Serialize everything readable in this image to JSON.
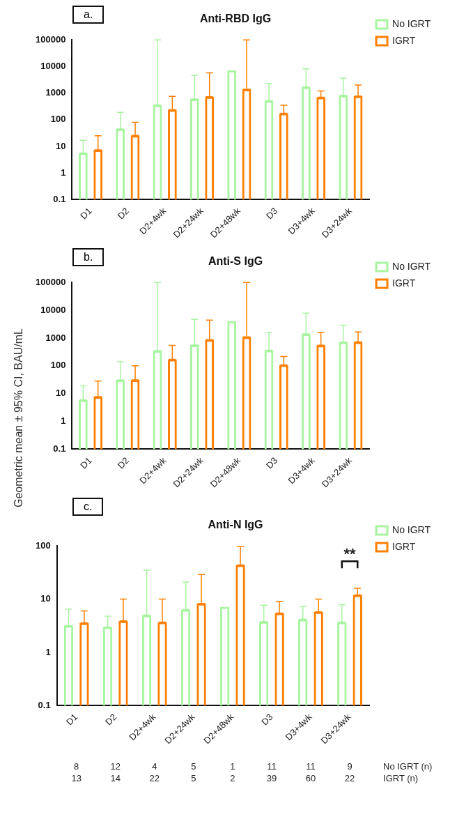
{
  "chart_data": [
    {
      "type": "bar",
      "title": "Anti-RBD IgG",
      "categories": [
        "D1",
        "D2",
        "D2+4wk",
        "D2+24wk",
        "D2+48wk",
        "D3",
        "D3+4wk",
        "D3+24wk"
      ],
      "log": true,
      "ylim": [
        0.1,
        100000
      ],
      "yticks": [
        0.1,
        1,
        10,
        100,
        1000,
        10000,
        100000
      ],
      "legend": "top right",
      "annotations": [
        "a."
      ],
      "series": [
        {
          "name": "No IGRT",
          "color": "#a8f5a0",
          "values": [
            5.6,
            45,
            360,
            600,
            7200,
            520,
            1700,
            830
          ],
          "errors": [
            [
              5.6,
              17
            ],
            [
              45,
              190
            ],
            [
              360,
              100000
            ],
            [
              600,
              4700
            ],
            null,
            [
              520,
              2300
            ],
            [
              1700,
              8200
            ],
            [
              830,
              3700
            ]
          ]
        },
        {
          "name": "IGRT",
          "color": "#ff8000",
          "values": [
            7.4,
            26,
            240,
            730,
            1400,
            175,
            700,
            780
          ],
          "errors": [
            [
              7.4,
              25
            ],
            [
              26,
              80
            ],
            [
              240,
              760
            ],
            [
              730,
              5800
            ],
            [
              1400,
              100000
            ],
            [
              175,
              350
            ],
            [
              700,
              1200
            ],
            [
              780,
              2000
            ]
          ]
        }
      ]
    },
    {
      "type": "bar",
      "title": "Anti-S IgG",
      "ylabel": "Geometric mean ± 95% CI, BAU/mL",
      "categories": [
        "D1",
        "D2",
        "D2+4wk",
        "D2+24wk",
        "D2+48wk",
        "D3",
        "D3+4wk",
        "D3+24wk"
      ],
      "log": true,
      "ylim": [
        0.1,
        100000
      ],
      "yticks": [
        0.1,
        1,
        10,
        100,
        1000,
        10000,
        100000
      ],
      "legend": "top right",
      "annotations": [
        "b."
      ],
      "series": [
        {
          "name": "No IGRT",
          "color": "#a8f5a0",
          "values": [
            6,
            31,
            350,
            560,
            4100,
            360,
            1400,
            710
          ],
          "errors": [
            [
              6,
              19
            ],
            [
              31,
              140
            ],
            [
              350,
              100000
            ],
            [
              560,
              4700
            ],
            null,
            [
              360,
              1600
            ],
            [
              1400,
              7800
            ],
            [
              710,
              2900
            ]
          ]
        },
        {
          "name": "IGRT",
          "color": "#ff8000",
          "values": [
            7.8,
            31,
            170,
            870,
            1100,
            107,
            550,
            730
          ],
          "errors": [
            [
              7.8,
              28
            ],
            [
              31,
              100
            ],
            [
              170,
              540
            ],
            [
              870,
              4400
            ],
            [
              1100,
              100000
            ],
            [
              107,
              215
            ],
            [
              550,
              1550
            ],
            [
              730,
              1650
            ]
          ]
        }
      ]
    },
    {
      "type": "bar",
      "title": "Anti-N IgG",
      "categories": [
        "D1",
        "D2",
        "D2+4wk",
        "D2+24wk",
        "D2+48wk",
        "D3",
        "D3+4wk",
        "D3+24wk"
      ],
      "log": true,
      "ylim": [
        0.1,
        100
      ],
      "yticks": [
        0.1,
        1,
        10,
        100
      ],
      "legend": "top right",
      "annotations": [
        "c.",
        "**",
        "8",
        "12",
        "4",
        "5",
        "1",
        "11",
        "11",
        "9",
        "No IGRT (n)",
        "13",
        "14",
        "22",
        "5",
        "2",
        "39",
        "60",
        "22",
        "IGRT (n)"
      ],
      "series": [
        {
          "name": "No IGRT",
          "color": "#a8f5a0",
          "values": [
            3.2,
            3.0,
            5.0,
            6.4,
            7.2,
            3.8,
            4.2,
            3.7
          ],
          "errors": [
            [
              3.2,
              6.5
            ],
            [
              3.0,
              4.8
            ],
            [
              5.0,
              35
            ],
            [
              6.4,
              21
            ],
            null,
            [
              3.8,
              7.7
            ],
            [
              4.2,
              7.3
            ],
            [
              3.7,
              7.9
            ]
          ]
        },
        {
          "name": "IGRT",
          "color": "#ff8000",
          "values": [
            3.6,
            3.9,
            3.7,
            8.3,
            44,
            5.5,
            5.8,
            12
          ],
          "errors": [
            [
              3.6,
              6
            ],
            [
              3.9,
              10
            ],
            [
              3.7,
              10
            ],
            [
              8.3,
              29
            ],
            [
              44,
              97
            ],
            [
              5.5,
              9
            ],
            [
              5.8,
              10
            ],
            [
              12,
              16
            ]
          ]
        }
      ]
    }
  ]
}
